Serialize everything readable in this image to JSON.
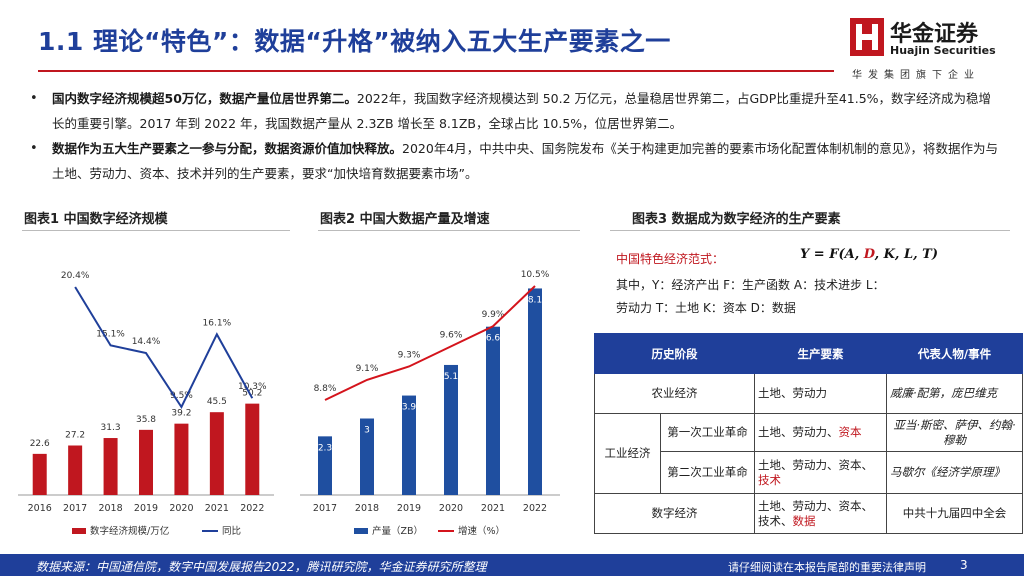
{
  "header": {
    "title": "1.1 理论“特色”：数据“升格”被纳入五大生产要素之一",
    "logo_name": "华金证券",
    "logo_en": "Huajin Securities",
    "slogan": "华发集团旗下企业",
    "logo_color": "#c0171f"
  },
  "bullets": [
    {
      "bold": "国内数字经济规模超50万亿，数据产量位居世界第二。",
      "text": "2022年，我国数字经济规模达到 50.2 万亿元，总量稳居世界第二，占GDP比重提升至41.5%，数字经济成为稳增长的重要引擎。2017 年到 2022 年，我国数据产量从 2.3ZB 增长至 8.1ZB，全球占比 10.5%，位居世界第二。"
    },
    {
      "bold": "数据作为五大生产要素之一参与分配，数据资源价值加快释放。",
      "text": "2020年4月，中共中央、国务院发布《关于构建更加完善的要素市场化配置体制机制的意见》，将数据作为与土地、劳动力、资本、技术并列的生产要素，要求“加快培育数据要素市场”。"
    }
  ],
  "figure_titles": [
    "图表1  中国数字经济规模",
    "图表2  中国大数据产量及增速",
    "图表3  数据成为数字经济的生产要素"
  ],
  "chart_data": [
    {
      "type": "bar",
      "title": "中国数字经济规模",
      "categories": [
        "2016",
        "2017",
        "2018",
        "2019",
        "2020",
        "2021",
        "2022"
      ],
      "series": [
        {
          "name": "数字经济规模/万亿",
          "type": "bar",
          "values": [
            22.6,
            27.2,
            31.3,
            35.8,
            39.2,
            45.5,
            50.2
          ],
          "color": "#c0171f"
        },
        {
          "name": "同比",
          "type": "line",
          "values": [
            null,
            20.4,
            15.1,
            14.4,
            9.5,
            16.1,
            10.3
          ],
          "labels": [
            "",
            "20.4%",
            "15.1%",
            "14.4%",
            "9.5%",
            "16.1%",
            "10.3%"
          ],
          "color": "#1f3f9a"
        }
      ],
      "legend": "bottom",
      "grid": false
    },
    {
      "type": "bar",
      "title": "中国大数据产量及增速",
      "categories": [
        "2017",
        "2018",
        "2019",
        "2020",
        "2021",
        "2022"
      ],
      "series": [
        {
          "name": "产量（ZB）",
          "type": "bar",
          "values": [
            2.3,
            3,
            3.9,
            5.1,
            6.6,
            8.1
          ],
          "color": "#1f4fa0"
        },
        {
          "name": "增速（%）",
          "type": "line",
          "values": [
            8.8,
            9.1,
            9.3,
            9.6,
            9.9,
            10.5
          ],
          "labels": [
            "8.8%",
            "9.1%",
            "9.3%",
            "9.6%",
            "9.9%",
            "10.5%"
          ],
          "color": "#d4141c"
        }
      ],
      "legend": "bottom",
      "grid": false
    }
  ],
  "fig3": {
    "formula_label": "中国特色经济范式：",
    "formula_parts": [
      "Y = F(A, ",
      "D",
      ", K, L, T)"
    ],
    "explain_line1": "其中，Y：经济产出    F：生产函数    A：技术进步    L：",
    "explain_line2": "劳动力    T：土地    K：资本    D：数据",
    "table": {
      "headers": [
        "历史阶段",
        "生产要素",
        "代表人物/事件"
      ],
      "agri": {
        "stage": "农业经济",
        "factors": "土地、劳动力",
        "people": "威廉·配第，庞巴维克"
      },
      "industry_label": "工业经济",
      "ind1": {
        "stage": "第一次工业革命",
        "factors_plain": "土地、劳动力、",
        "factors_red": "资本",
        "people": "亚当·斯密、萨伊、约翰·穆勒"
      },
      "ind2": {
        "stage": "第二次工业革命",
        "factors_plain": "土地、劳动力、资本、",
        "factors_red": "技术",
        "people": "马歇尔《经济学原理》"
      },
      "digital": {
        "stage": "数字经济",
        "factors_plain": "土地、劳动力、资本、技术、",
        "factors_red": "数据",
        "people": "中共十九届四中全会"
      }
    }
  },
  "footer": {
    "source": "数据来源：中国通信院，数字中国发展报告2022，腾讯研究院，华金证券研究所整理",
    "notice": "请仔细阅读在本报告尾部的重要法律声明",
    "page": "3"
  }
}
